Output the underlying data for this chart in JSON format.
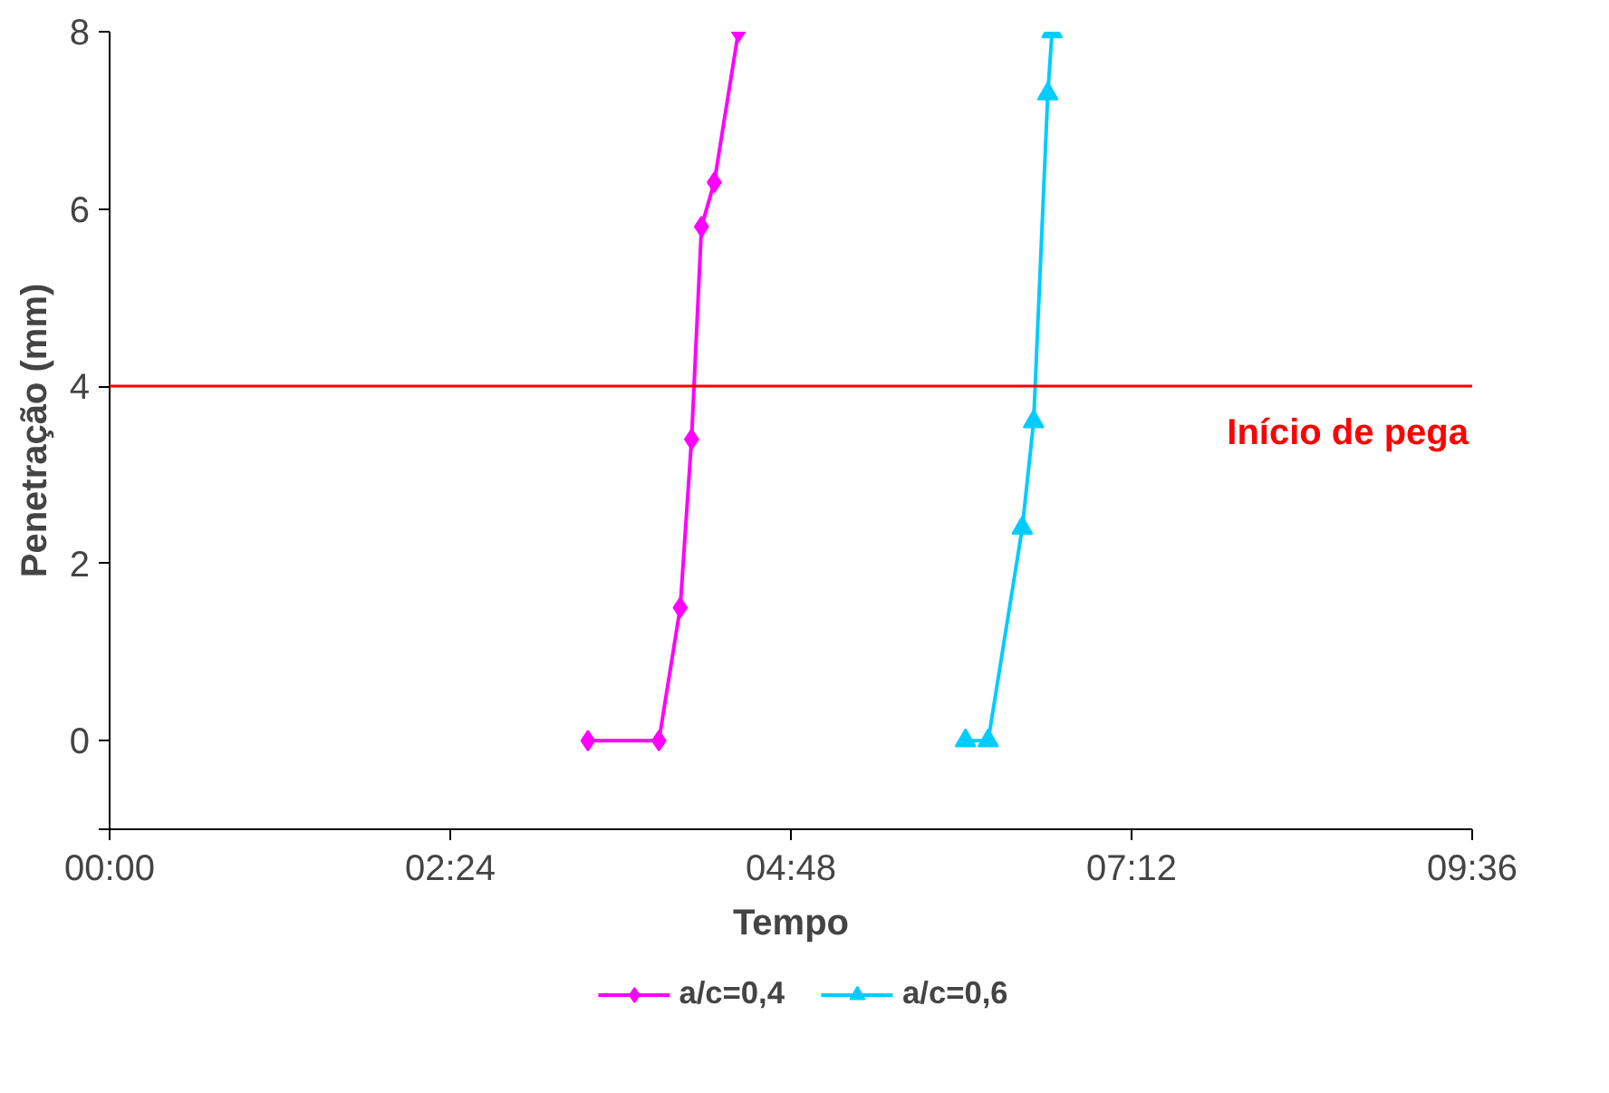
{
  "chart_data": {
    "type": "line",
    "xlabel": "Tempo",
    "ylabel": "Penetração (mm)",
    "xlim": [
      0,
      9.6
    ],
    "ylim": [
      -1,
      8
    ],
    "xticks": [
      {
        "value": 0,
        "label": "00:00"
      },
      {
        "value": 2.4,
        "label": "02:24"
      },
      {
        "value": 4.8,
        "label": "04:48"
      },
      {
        "value": 7.2,
        "label": "07:12"
      },
      {
        "value": 9.6,
        "label": "09:36"
      }
    ],
    "yticks": [
      {
        "value": -1,
        "label": null
      },
      0,
      2,
      4,
      6,
      8
    ],
    "series": [
      {
        "name": "a/c=0,4",
        "color": "#ff00ff",
        "marker": "diamond",
        "x": [
          3.37,
          3.87,
          4.02,
          4.1,
          4.17,
          4.26,
          4.43
        ],
        "values": [
          0,
          0,
          1.5,
          3.4,
          5.8,
          6.3,
          8
        ]
      },
      {
        "name": "a/c=0,6",
        "color": "#00ccff",
        "marker": "triangle",
        "x": [
          6.03,
          6.19,
          6.43,
          6.51,
          6.61,
          6.64
        ],
        "values": [
          0,
          0,
          2.4,
          3.6,
          7.3,
          8
        ]
      }
    ],
    "ref_lines": [
      {
        "axis": "y",
        "value": 4,
        "label": "Início de pega",
        "color": "#ff0000"
      }
    ],
    "grid": false,
    "legend": "bottom"
  }
}
